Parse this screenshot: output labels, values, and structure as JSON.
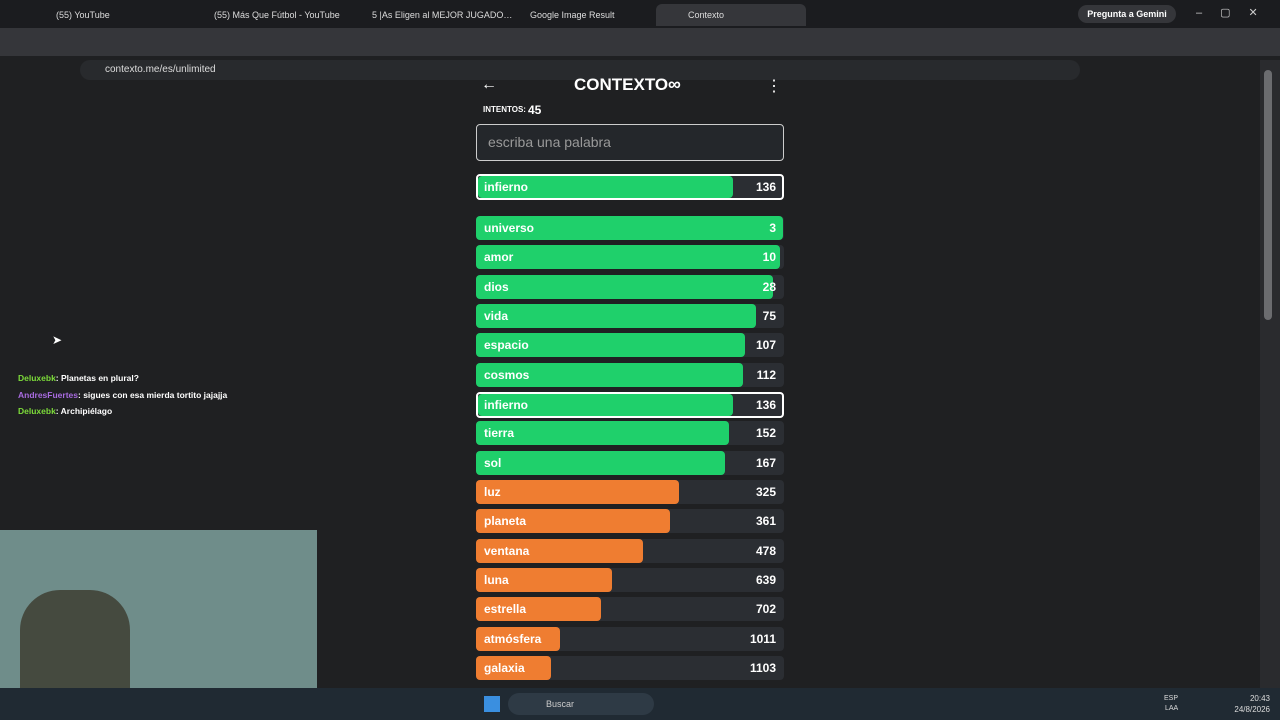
{
  "browser": {
    "tabs": [
      "(55) YouTube",
      "(55) Más Que Fútbol - YouTube",
      "5 |As Eligen al MEJOR JUGADO…",
      "Google Image Result",
      "Contexto"
    ],
    "gemini": "Pregunta a Gemini",
    "url": "contexto.me/es/unlimited"
  },
  "game": {
    "title": "CONTEXTO",
    "attempts_label": "INTENTOS:",
    "attempts": 45,
    "input_placeholder": "escriba una palabra",
    "last_guess": {
      "word": "infierno",
      "rank": 136
    },
    "guesses": [
      {
        "word": "universo",
        "rank": 3
      },
      {
        "word": "amor",
        "rank": 10
      },
      {
        "word": "dios",
        "rank": 28
      },
      {
        "word": "vida",
        "rank": 75
      },
      {
        "word": "espacio",
        "rank": 107
      },
      {
        "word": "cosmos",
        "rank": 112
      },
      {
        "word": "infierno",
        "rank": 136
      },
      {
        "word": "tierra",
        "rank": 152
      },
      {
        "word": "sol",
        "rank": 167
      },
      {
        "word": "luz",
        "rank": 325
      },
      {
        "word": "planeta",
        "rank": 361
      },
      {
        "word": "ventana",
        "rank": 478
      },
      {
        "word": "luna",
        "rank": 639
      },
      {
        "word": "estrella",
        "rank": 702
      },
      {
        "word": "atmósfera",
        "rank": 1011
      },
      {
        "word": "galaxia",
        "rank": 1103
      }
    ]
  },
  "chat": [
    {
      "user": "Deluxebk",
      "message": ": Planetas en plural?"
    },
    {
      "user": "AndresFuertes",
      "message": ": sigues con esa mierda tortito jajajja"
    },
    {
      "user": "Deluxebk",
      "message": ": Archipiélago"
    }
  ],
  "taskbar": {
    "search": "Buscar",
    "lang": "ESP",
    "layout": "LAA",
    "time": "20:43",
    "date": "24/8/2026"
  }
}
